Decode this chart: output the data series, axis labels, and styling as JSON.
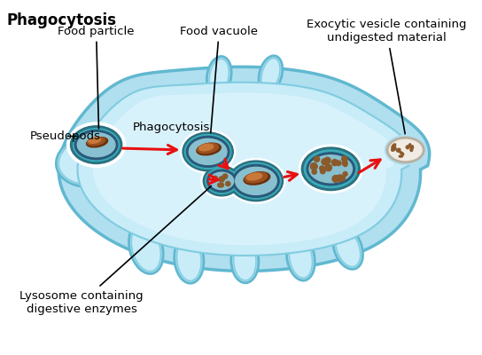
{
  "title": "Phagocytosis",
  "title_fontsize": 12,
  "title_fontweight": "bold",
  "labels": {
    "food_particle": "Food particle",
    "food_vacuole": "Food vacuole",
    "exocytic": "Exocytic vesicle containing\nundigested material",
    "pseudopods": "Pseudopods",
    "phagocytosis": "Phagocytosis",
    "lysosome": "Lysosome containing\ndigestive enzymes"
  },
  "colors": {
    "background": "#ffffff",
    "cell_outer_fill": "#b0dff0",
    "cell_outer_edge": "#60b8d0",
    "cell_mid_fill": "#c8ecf8",
    "cell_mid_edge": "#80cce0",
    "cell_inner_fill": "#d8f2fc",
    "cell_inner_edge": "#90d8e8",
    "vacuole_white": "#ffffff",
    "vacuole_dark": "#2a7080",
    "vacuole_teal": "#3aabb8",
    "vacuole_blue": "#2a5878",
    "vacuole_light": "#88c0d0",
    "food_dark": "#6a3008",
    "food_mid": "#9a5020",
    "food_light": "#c87838",
    "arrow_red": "#e81010",
    "exo_border": "#b8b0a0",
    "exo_fill": "#f0ece4",
    "frag_color": "#8b5a2b",
    "pseudopod_fill": "#a0d8ec",
    "pseudopod_edge": "#50b0cc",
    "text_black": "#000000"
  },
  "figsize": [
    5.44,
    4.0
  ],
  "dpi": 100
}
